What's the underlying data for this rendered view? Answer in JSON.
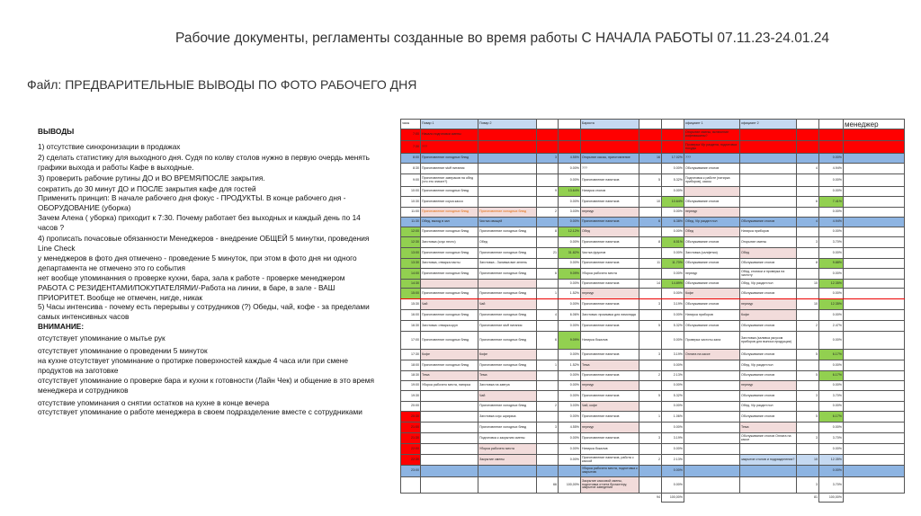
{
  "title": "Рабочие документы, регламенты созданные во время работы С НАЧАЛА РАБОТЫ 07.11.23-24.01.24",
  "subtitle": "Файл: ПРЕДВАРИТЕЛЬНЫЕ ВЫВОДЫ ПО ФОТО РАБОЧЕГО ДНЯ",
  "notes": {
    "heading": "ВЫВОДЫ",
    "lines": [
      " 1) отсутствие синхронизации в продажах",
      "2) сделать статистику для выходного дня. Судя по колву столов нужно в первую очердь менять графики выхода и работы Кафе в выходные.",
      "3) проверить рабочие рутины ДО и ВО ВРЕМЯ/ПОСЛЕ  закрытия.",
      "сократить до 30 минут ДО и  ПОСЛЕ закрытия кафе для гостей",
      "Применить принцип: В начале рабочего дня фокус - ПРОДУКТЫ. В конце рабочего дня - ОБОРУДОВАНИЕ (уборка)",
      "Зачем Алена ( уборка) приходит к 7:30. Почему работает без выходных и каждый день по 14 часов ?",
      "4) прописать почасовые обязанности Менеджеров - внедрение ОБЩЕЙ 5 минутки, проведения Line Check",
      "у менеджеров в фото дня отмечено - проведение 5 минуток, при  этом в фото дня ни одного департамента не отмечено это го события",
      "нет вообще упоминанния о проверке кухни, бара, зала к работе - проверке менеджером",
      "РАБОТА С РЕЗИДЕНТАМИ/ПОКУПАТЕЛЯМИ/-Работа на линии, в баре, в зале - ВАШ ПРИОРИТЕТ. Вообще не отмечен, нигде, никак",
      "5) Часы интенсива - почему есть перерывы у сотрудников (?) Обеды, чай, кофе - за пределами самых интенсивных часов"
    ],
    "attention_heading": "ВНИМАНИЕ:",
    "attention_lines": [
      "отсутствует упоминание о мытье рук",
      "отсутствует упоминание о проведении 5 минуток",
      "на кухне отсутствует упоминание о протирке поверхностей каждые 4 часа или при смене продуктов на заготовке",
      "отсутствует упоминание о проверке бара и кухни к готовности (Лайн Чек) и общение в это время менеджера и  сотрудников",
      "отсутствие упоминания о снятии остатков на кухне в конце вечера",
      "отсутствует упоминание о работе менеджера в своем подразделение вместе с сотрудниками"
    ]
  },
  "colors": {
    "red": "#ff0000",
    "blue": "#8db4e2",
    "green": "#92d050",
    "pink": "#f2dcdb",
    "header": "#c5d9f1"
  },
  "table": {
    "headers": {
      "t": "часы",
      "c1": "Повар 1",
      "c2": "Повар 2",
      "n1": "",
      "p1": "",
      "c3": "Бариста",
      "n2": "",
      "p2": "",
      "c4": "официант 1",
      "c5": "официант 2",
      "n3": "",
      "p3": "",
      "m": "менеджер"
    },
    "rows": [
      {
        "t": "7:00",
        "c1": "Начало подготовки смены",
        "c4": "Открытие смены, включение кофемашины?",
        "fill": "red"
      },
      {
        "t": "7:30",
        "c1": "???",
        "c4": "Проверка Vip раздела, подготовка посуды",
        "fill": "red"
      },
      {
        "t": "8:00",
        "c1": "Приготовление холодных блюд",
        "n1": "3",
        "p1": "4.55%",
        "c3": "Открытие кассы, приготовление",
        "n2": "16",
        "p2": "17.02%",
        "c4": "???",
        "p3": "0.00%",
        "fill": "blue"
      },
      {
        "t": "8:30",
        "c1": "Приготовление stuff питания",
        "p1": "0.00%",
        "c3": "???",
        "p2": "0.00%",
        "c4": "Обслуживание столов",
        "n3": "4",
        "p3": "4.94%"
      },
      {
        "t": "9:00",
        "c1": "Приготовление завтраков на обед (что это значит?)",
        "p1": "0.00%",
        "c3": "Приготовление напитков",
        "n2": "5",
        "p2": "5.32%",
        "c4": "Подготовка к работе (натирка приборов), кассы",
        "p3": "0.00%"
      },
      {
        "t": "10:00",
        "c1": "Приготовление холодных блюд",
        "n1": "9",
        "p1": "13.64%",
        "c3": "Натирка столов",
        "p2": "0.00%",
        "c4": "",
        "p3": "0.00%",
        "hl": {
          "p1": "green",
          "c4": "pink"
        }
      },
      {
        "t": "10:30",
        "c1": "Приготовление соуса кассо",
        "p1": "0.00%",
        "c3": "Приготовление напитков",
        "n2": "10",
        "p2": "10.64%",
        "c4": "Обслуживание столов",
        "n3": "6",
        "p3": "7.41%",
        "hl": {
          "p2": "green",
          "p3": "green"
        }
      },
      {
        "t": "11:00",
        "c1": "Приготовление холодных блюд",
        "c2": "Приготовление холодных блюд",
        "n1": "2",
        "p1": "3.03%",
        "c3": "перекур",
        "p2": "0.00%",
        "c4": "перекур",
        "p3": "0.00%",
        "hl": {
          "c1": "pink orange",
          "c2": "pink orange",
          "c3": "pink",
          "c4": "pink"
        }
      },
      {
        "t": "11:30",
        "c1": "Обед, выход в зал",
        "c2": "Чистка овощей",
        "p1": "0.00%",
        "c3": "Приготовление напитков",
        "n2": "6",
        "p2": "6.38%",
        "c4": "Обед, Vip раздел пол",
        "c5": "Обслуживание столов",
        "n3": "4",
        "p3": "4.94%",
        "fill": "blue"
      },
      {
        "t": "12:00",
        "c1": "Приготовление холодных блюд",
        "c2": "Приготовление холодных блюд",
        "n1": "8",
        "p1": "12.12%",
        "c3": "Обед",
        "p2": "0.00%",
        "c4": "Обед",
        "c5": "Натирка приборов",
        "p3": "0.00%",
        "hl": {
          "t": "green",
          "p1": "green",
          "c3": "pink",
          "c4": "pink"
        }
      },
      {
        "t": "12:30",
        "c1": "Заготовка (соус песто)",
        "c2": "Обед",
        "p1": "0.00%",
        "c3": "Приготовление напитков",
        "n2": "8",
        "p2": "8.51%",
        "c4": "Обслуживание столов",
        "c5": "Открытие смены",
        "n3": "3",
        "p3": "3.70%",
        "hl": {
          "t": "green",
          "p2": "green"
        }
      },
      {
        "t": "13:00",
        "c1": "Приготовление холодных блюд",
        "c2": "Приготовление холодных блюд",
        "n1": "21",
        "p1": "31.82%",
        "c3": "Чистка фруктов",
        "p2": "0.00%",
        "c4": "Заготовка (салфетки)",
        "c5": "Обед",
        "p3": "0.00%",
        "hl": {
          "t": "green",
          "p1": "green",
          "c5": "pink"
        }
      },
      {
        "t": "13:30",
        "c1": "Заготовка, отварка пасты",
        "c2": "Заготовка - Заливка вин зелень",
        "p1": "0.00%",
        "c3": "Приготовление напитков",
        "n2": "11",
        "p2": "11.70%",
        "c4": "Обслуживание столов",
        "c5": "Обслуживание столов",
        "n3": "8",
        "p3": "9.88%",
        "hl": {
          "t": "green",
          "p2": "green",
          "p3": "green"
        }
      },
      {
        "t": "14:00",
        "c1": "Приготовление холодных блюд",
        "c2": "Приготовление холодных блюд",
        "n1": "6",
        "p1": "9.09%",
        "c3": "Уборка рабочего места",
        "p2": "0.00%",
        "c4": "перекур",
        "c5": "Обед, столики и проверка на чистоту",
        "p3": "0.00%",
        "hl": {
          "t": "green",
          "p1": "green"
        }
      },
      {
        "t": "14:30",
        "c1": "",
        "c2": "",
        "p1": "0.00%",
        "c3": "Приготовление напитков",
        "n2": "14",
        "p2": "14.89%",
        "c4": "Обслуживание столов",
        "c5": "Обед, Vip раздел пол",
        "n3": "10",
        "p3": "12.35%",
        "hl": {
          "t": "green",
          "c1": "pink",
          "c2": "pink",
          "p2": "green",
          "p3": "green"
        }
      },
      {
        "t": "15:00",
        "c1": "Приготовление холодных блюд",
        "c2": "Приготовление холодных блюд",
        "n1": "1",
        "p1": "1.52%",
        "c3": "перекур",
        "p2": "0.00%",
        "c4": "Кофе",
        "c5": "Обслуживание столов",
        "p3": "0.00%",
        "hl": {
          "t": "green",
          "c3": "pink",
          "c4": "pink"
        },
        "redline": true
      },
      {
        "t": "15:30",
        "c1": "Чай",
        "c2": "Чай",
        "p1": "0.00%",
        "c3": "Приготовление напитков",
        "n2": "3",
        "p2": "3.19%",
        "c4": "Обслуживание столов",
        "c5": "перекур",
        "n3": "10",
        "p3": "12.35%",
        "hl": {
          "c1": "pink",
          "c2": "pink",
          "c5": "pink",
          "p3": "green"
        }
      },
      {
        "t": "16:00",
        "c1": "Приготовление холодных блюд",
        "c2": "Приготовление холодных блюд",
        "n1": "4",
        "p1": "6.06%",
        "c3": "Заготовка: промывка для лимонада",
        "p2": "0.00%",
        "c4": "Натирка приборов",
        "c5": "Кофе",
        "p3": "0.00%",
        "hl": {
          "c5": "pink"
        }
      },
      {
        "t": "16:30",
        "c1": "Заготовка: отварка круп",
        "c2": "Приготовление stuff питания",
        "p1": "0.00%",
        "c3": "Приготовление напитков",
        "n2": "5",
        "p2": "5.32%",
        "c4": "Обслуживание столов",
        "c5": "Обслуживание столов",
        "n3": "2",
        "p3": "2.47%"
      },
      {
        "t": "17:00",
        "c1": "Приготовление холодных блюд",
        "c2": "Приготовление холодных блюд",
        "n1": "6",
        "p1": "9.09%",
        "c3": "Натирка бокалов",
        "p2": "0.00%",
        "c4": "Проверка чистоты зала",
        "c5": "Заготовка (заливка уксусом приборов для выноса продукции)",
        "p3": "0.00%",
        "hl": {
          "p1": "green"
        }
      },
      {
        "t": "17:30",
        "c1": "Кофе",
        "c2": "Кофе",
        "p1": "0.00%",
        "c3": "Приготовление напитков",
        "n2": "3",
        "p2": "3.19%",
        "c4": "Оплата на кассе",
        "c5": "Обслуживание столов",
        "n3": "5",
        "p3": "6.17%",
        "hl": {
          "c1": "pink",
          "c2": "pink",
          "c4": "pink",
          "p3": "green"
        }
      },
      {
        "t": "18:00",
        "c1": "Приготовление холодных блюд",
        "c2": "Приготовление холодных блюд",
        "n1": "1",
        "p1": "1.52%",
        "c3": "Тема",
        "p2": "0.00%",
        "c5": "Обед, Vip раздел пол",
        "p3": "0.00%",
        "hl": {
          "c3": "pink"
        }
      },
      {
        "t": "18:30",
        "c1": "Тема",
        "c2": "Тема",
        "p1": "0.00%",
        "c3": "Приготовление напитков",
        "n2": "2",
        "p2": "2.13%",
        "c5": "Обслуживание столов",
        "n3": "5",
        "p3": "6.17%",
        "hl": {
          "c1": "pink",
          "c2": "pink",
          "p3": "green"
        }
      },
      {
        "t": "19:00",
        "c1": "Уборка рабочего места, натирка",
        "c2": "Заготовка на завтра",
        "p1": "0.00%",
        "c3": "перекур",
        "p2": "0.00%",
        "c5": "перекур",
        "p3": "0.00%",
        "hl": {
          "c3": "pink",
          "c5": "pink"
        }
      },
      {
        "t": "19:30",
        "c2": "Чай",
        "p1": "0.00%",
        "c3": "Приготовление напитков",
        "n2": "5",
        "p2": "5.32%",
        "c5": "Обслуживание столов",
        "n3": "3",
        "p3": "3.70%",
        "hl": {
          "c2": "pink"
        }
      },
      {
        "t": "20:00",
        "c2": "Приготовление холодных блюд",
        "n1": "2",
        "p1": "3.03%",
        "c3": "Чай, кофе",
        "p2": "0.00%",
        "c5": "Обед, Vip раздел пол",
        "p3": "0.00%",
        "hl": {
          "c3": "pink"
        }
      },
      {
        "t": "20:30",
        "c2": "Заготовка соус шрирача",
        "p1": "0.00%",
        "c3": "Приготовление напитков",
        "n2": "1",
        "p2": "1.06%",
        "c5": "Обслуживание столов",
        "n3": "5",
        "p3": "6.17%",
        "hl": {
          "t": "red",
          "p3": "green"
        }
      },
      {
        "t": "21:00",
        "c2": "Приготовление холодных блюд",
        "n1": "3",
        "p1": "4.55%",
        "c3": "перекур",
        "p2": "0.00%",
        "c5": "Тема",
        "p3": "0.00%",
        "hl": {
          "t": "red",
          "c3": "pink",
          "c5": "pink"
        }
      },
      {
        "t": "21:30",
        "c2": "Подготовка к закрытию смены",
        "p1": "0.00%",
        "c3": "Приготовление напитков",
        "n2": "3",
        "p2": "3.19%",
        "c5": "Обслуживание столов Оплата на кассе",
        "n3": "3",
        "p3": "3.70%",
        "hl": {
          "t": "red"
        }
      },
      {
        "t": "22:00",
        "c2": "Уборка рабочего места",
        "p1": "0.00%",
        "c3": "Натирка бокалов",
        "p2": "0.00%",
        "p3": "0.00%",
        "hl": {
          "t": "red",
          "c2": "pink"
        }
      },
      {
        "t": "22:30",
        "c2": "Закрытие смены",
        "p1": "0.00%",
        "c3": "Приготовление напитков, работа с кассой",
        "n2": "2",
        "p2": "2.13%",
        "c5": "закрытие столов и подразделения?",
        "n3": "10",
        "p3": "12.35%",
        "hl": {
          "t": "red",
          "c2": "pink",
          "c5": "lblue",
          "n3": "lblue",
          "p3": "lblue"
        }
      },
      {
        "t": "23:00",
        "c3": "Уборка рабочего места, подготовка к закрытию",
        "p2": "0.00%",
        "p3": "0.00%",
        "fill": "blue"
      },
      {
        "n1": "66",
        "p1": "100,00%",
        "c3": "Закрытие кассовой смены, подготовка отчета бухгалтеру, закрытие заведения",
        "p2": "0.00%",
        "n3": "3",
        "p3": "3.70%",
        "hl": {
          "c3": "pink"
        }
      }
    ],
    "totals": {
      "n2": "94",
      "p2": "100,00%",
      "n3": "81",
      "p3": "100,00%"
    }
  }
}
